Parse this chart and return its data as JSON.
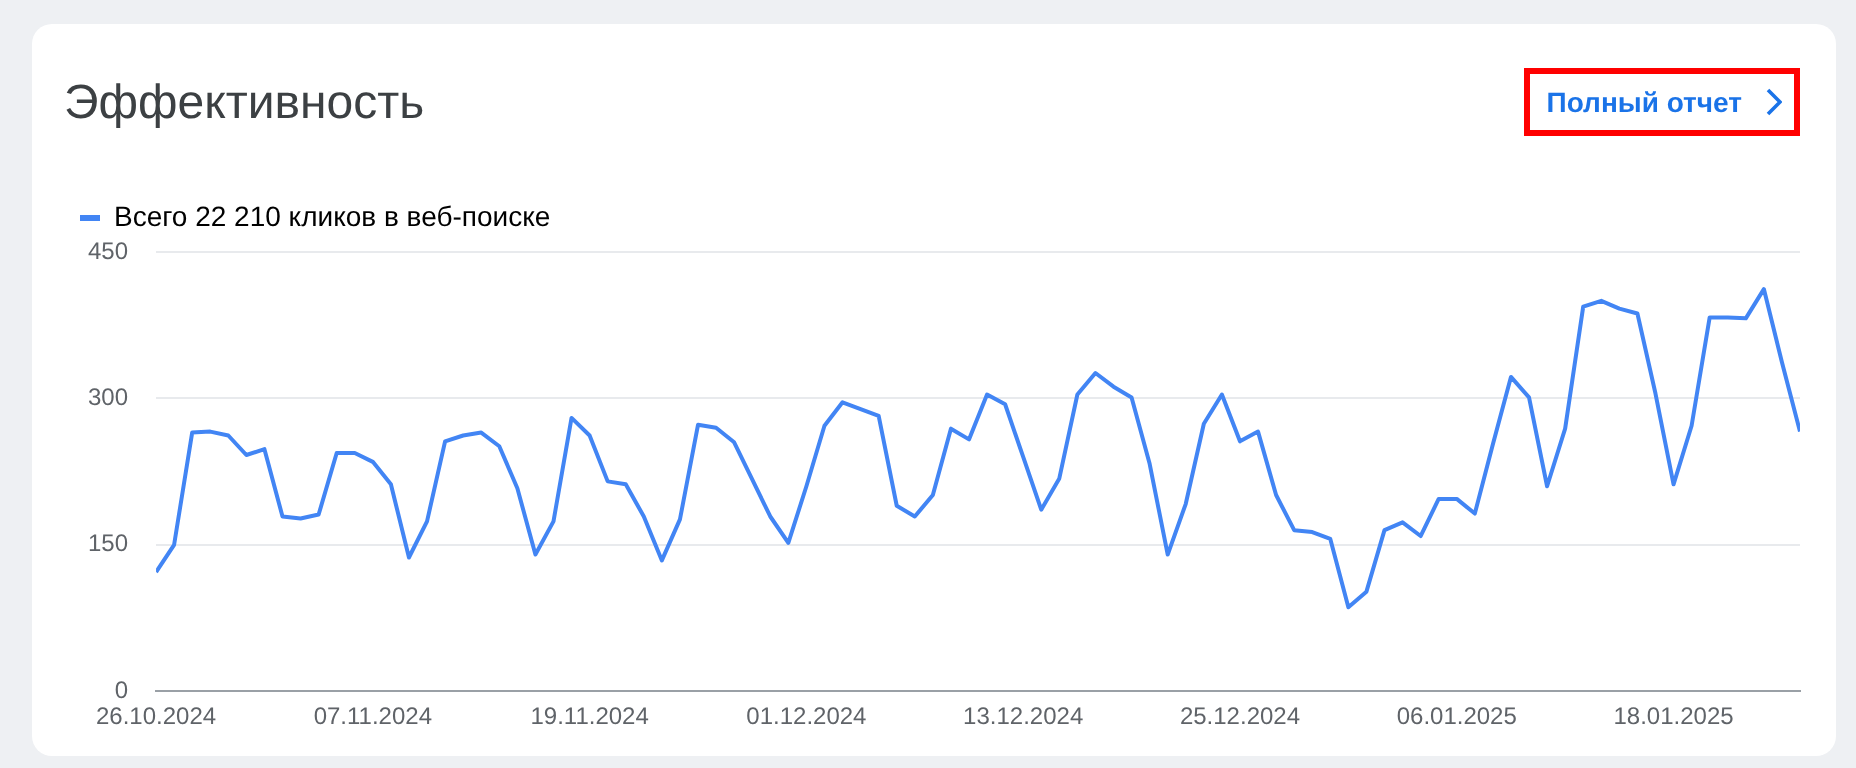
{
  "chart_data": {
    "type": "line",
    "title": "Эффективность",
    "annotations": [
      "Полный отчет"
    ],
    "x": [
      "2024-10-26",
      "2024-10-27",
      "2024-10-28",
      "2024-10-29",
      "2024-10-30",
      "2024-10-31",
      "2024-11-01",
      "2024-11-02",
      "2024-11-03",
      "2024-11-04",
      "2024-11-05",
      "2024-11-06",
      "2024-11-07",
      "2024-11-08",
      "2024-11-09",
      "2024-11-10",
      "2024-11-11",
      "2024-11-12",
      "2024-11-13",
      "2024-11-14",
      "2024-11-15",
      "2024-11-16",
      "2024-11-17",
      "2024-11-18",
      "2024-11-19",
      "2024-11-20",
      "2024-11-21",
      "2024-11-22",
      "2024-11-23",
      "2024-11-24",
      "2024-11-25",
      "2024-11-26",
      "2024-11-27",
      "2024-11-28",
      "2024-11-29",
      "2024-11-30",
      "2024-12-01",
      "2024-12-02",
      "2024-12-03",
      "2024-12-04",
      "2024-12-05",
      "2024-12-06",
      "2024-12-07",
      "2024-12-08",
      "2024-12-09",
      "2024-12-10",
      "2024-12-11",
      "2024-12-12",
      "2024-12-13",
      "2024-12-14",
      "2024-12-15",
      "2024-12-16",
      "2024-12-17",
      "2024-12-18",
      "2024-12-19",
      "2024-12-20",
      "2024-12-21",
      "2024-12-22",
      "2024-12-23",
      "2024-12-24",
      "2024-12-25",
      "2024-12-26",
      "2024-12-27",
      "2024-12-28",
      "2024-12-29",
      "2024-12-30",
      "2024-12-31",
      "2025-01-01",
      "2025-01-02",
      "2025-01-03",
      "2025-01-04",
      "2025-01-05",
      "2025-01-06",
      "2025-01-07",
      "2025-01-08",
      "2025-01-09",
      "2025-01-10",
      "2025-01-11",
      "2025-01-12",
      "2025-01-13",
      "2025-01-14",
      "2025-01-15",
      "2025-01-16",
      "2025-01-17",
      "2025-01-18",
      "2025-01-19",
      "2025-01-20",
      "2025-01-21",
      "2025-01-22",
      "2025-01-23",
      "2025-01-24",
      "2025-01-25"
    ],
    "series": [
      {
        "name": "Всего 22 210 кликов в веб-поиске",
        "color": "#4285f4",
        "values": [
          122,
          150,
          265,
          266,
          262,
          242,
          248,
          179,
          177,
          181,
          244,
          244,
          235,
          212,
          137,
          174,
          256,
          262,
          265,
          251,
          208,
          140,
          174,
          280,
          262,
          215,
          212,
          179,
          134,
          176,
          273,
          270,
          255,
          217,
          179,
          152,
          210,
          272,
          296,
          289,
          282,
          190,
          179,
          201,
          269,
          258,
          304,
          294,
          240,
          186,
          218,
          304,
          326,
          312,
          301,
          233,
          140,
          192,
          274,
          304,
          256,
          266,
          201,
          165,
          163,
          156,
          86,
          102,
          165,
          173,
          159,
          197,
          197,
          182,
          253,
          322,
          301,
          210,
          269,
          394,
          400,
          392,
          387,
          305,
          212,
          272,
          383,
          383,
          382,
          412,
          337,
          266
        ]
      }
    ],
    "xlim": [
      "2024-10-26",
      "2025-01-25"
    ],
    "xticks": [
      {
        "value": "2024-10-26",
        "label": "26.10.2024"
      },
      {
        "value": "2024-11-07",
        "label": "07.11.2024"
      },
      {
        "value": "2024-11-19",
        "label": "19.11.2024"
      },
      {
        "value": "2024-12-01",
        "label": "01.12.2024"
      },
      {
        "value": "2024-12-13",
        "label": "13.12.2024"
      },
      {
        "value": "2024-12-25",
        "label": "25.12.2024"
      },
      {
        "value": "2025-01-06",
        "label": "06.01.2025"
      },
      {
        "value": "2025-01-18",
        "label": "18.01.2025"
      }
    ],
    "ylim": [
      0,
      450
    ],
    "yticks": [
      0,
      150,
      300,
      450
    ],
    "grid": "y",
    "legend": "top left",
    "marker": "none",
    "line_style": "solid"
  }
}
